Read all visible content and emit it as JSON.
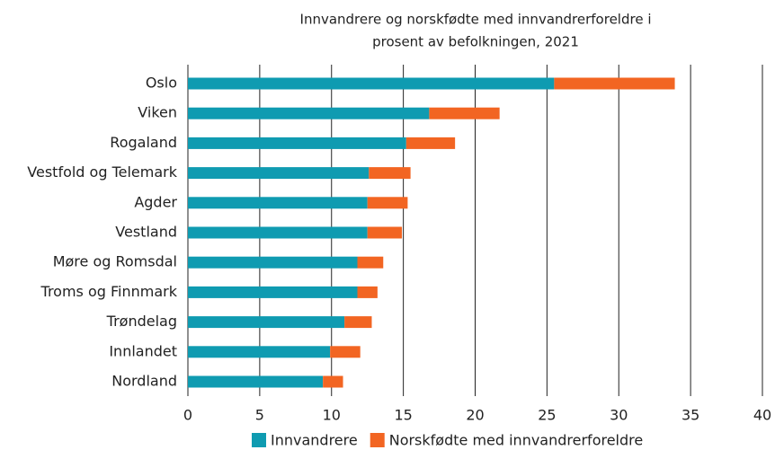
{
  "chart_data": {
    "type": "stacked_barh",
    "title": [
      "Innvandrere og norskfødte med innvandrerforeldre i",
      "prosent av befolkningen, 2021"
    ],
    "categories": [
      "Oslo",
      "Viken",
      "Rogaland",
      "Vestfold og Telemark",
      "Agder",
      "Vestland",
      "Møre og Romsdal",
      "Troms og Finnmark",
      "Trøndelag",
      "Innlandet",
      "Nordland"
    ],
    "series": [
      {
        "name": "Innvandrere",
        "color": "#0f9bb1",
        "values": [
          25.5,
          16.8,
          15.2,
          12.6,
          12.5,
          12.5,
          11.8,
          11.8,
          10.9,
          9.9,
          9.4
        ]
      },
      {
        "name": "Norskfødte med innvandrerforeldre",
        "color": "#f26522",
        "values": [
          8.4,
          4.9,
          3.4,
          2.9,
          2.8,
          2.4,
          1.8,
          1.4,
          1.9,
          2.1,
          1.4
        ]
      }
    ],
    "xlim": [
      0,
      40
    ],
    "xticks": [
      0,
      5,
      10,
      15,
      20,
      25,
      30,
      35,
      40
    ],
    "grid": true,
    "legend": "bottom"
  }
}
